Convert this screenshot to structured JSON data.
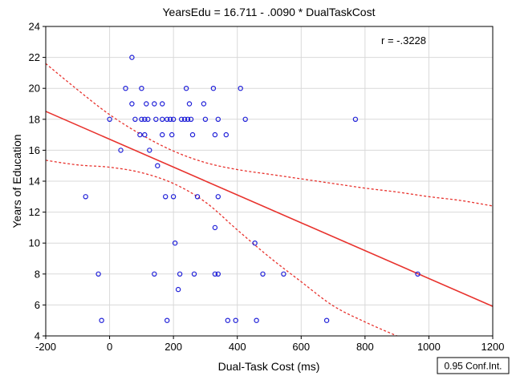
{
  "chart_data": {
    "type": "scatter",
    "title": "YearsEdu = 16.711 - .0090  * DualTaskCost",
    "xlabel": "Dual-Task Cost (ms)",
    "ylabel": "Years of Education",
    "annotation": "r = -.3228",
    "legend": "0.95 Conf.Int.",
    "xlim": [
      -200,
      1200
    ],
    "ylim": [
      4,
      24
    ],
    "xticks": [
      -200,
      0,
      200,
      400,
      600,
      800,
      1000,
      1200
    ],
    "yticks": [
      4,
      6,
      8,
      10,
      12,
      14,
      16,
      18,
      20,
      22,
      24
    ],
    "grid": true,
    "fit": {
      "intercept": 16.711,
      "slope": -0.009
    },
    "colors": {
      "points": "#1f1fd8",
      "fit": "#e8322d"
    },
    "points": [
      {
        "x": 70,
        "y": 22
      },
      {
        "x": 50,
        "y": 20
      },
      {
        "x": 100,
        "y": 20
      },
      {
        "x": 240,
        "y": 20
      },
      {
        "x": 325,
        "y": 20
      },
      {
        "x": 410,
        "y": 20
      },
      {
        "x": 70,
        "y": 19
      },
      {
        "x": 115,
        "y": 19
      },
      {
        "x": 140,
        "y": 19
      },
      {
        "x": 165,
        "y": 19
      },
      {
        "x": 250,
        "y": 19
      },
      {
        "x": 295,
        "y": 19
      },
      {
        "x": 0,
        "y": 18
      },
      {
        "x": 80,
        "y": 18
      },
      {
        "x": 100,
        "y": 18
      },
      {
        "x": 110,
        "y": 18
      },
      {
        "x": 120,
        "y": 18
      },
      {
        "x": 145,
        "y": 18
      },
      {
        "x": 165,
        "y": 18
      },
      {
        "x": 180,
        "y": 18
      },
      {
        "x": 190,
        "y": 18
      },
      {
        "x": 200,
        "y": 18
      },
      {
        "x": 225,
        "y": 18
      },
      {
        "x": 235,
        "y": 18
      },
      {
        "x": 245,
        "y": 18
      },
      {
        "x": 255,
        "y": 18
      },
      {
        "x": 300,
        "y": 18
      },
      {
        "x": 340,
        "y": 18
      },
      {
        "x": 425,
        "y": 18
      },
      {
        "x": 770,
        "y": 18
      },
      {
        "x": 95,
        "y": 17
      },
      {
        "x": 110,
        "y": 17
      },
      {
        "x": 165,
        "y": 17
      },
      {
        "x": 195,
        "y": 17
      },
      {
        "x": 260,
        "y": 17
      },
      {
        "x": 330,
        "y": 17
      },
      {
        "x": 365,
        "y": 17
      },
      {
        "x": 35,
        "y": 16
      },
      {
        "x": 125,
        "y": 16
      },
      {
        "x": 150,
        "y": 15
      },
      {
        "x": -75,
        "y": 13
      },
      {
        "x": 175,
        "y": 13
      },
      {
        "x": 200,
        "y": 13
      },
      {
        "x": 275,
        "y": 13
      },
      {
        "x": 340,
        "y": 13
      },
      {
        "x": 330,
        "y": 11
      },
      {
        "x": 205,
        "y": 10
      },
      {
        "x": 455,
        "y": 10
      },
      {
        "x": -35,
        "y": 8
      },
      {
        "x": 140,
        "y": 8
      },
      {
        "x": 220,
        "y": 8
      },
      {
        "x": 265,
        "y": 8
      },
      {
        "x": 330,
        "y": 8
      },
      {
        "x": 340,
        "y": 8
      },
      {
        "x": 480,
        "y": 8
      },
      {
        "x": 545,
        "y": 8
      },
      {
        "x": 965,
        "y": 8
      },
      {
        "x": 215,
        "y": 7
      },
      {
        "x": -25,
        "y": 5
      },
      {
        "x": 180,
        "y": 5
      },
      {
        "x": 370,
        "y": 5
      },
      {
        "x": 395,
        "y": 5
      },
      {
        "x": 460,
        "y": 5
      },
      {
        "x": 680,
        "y": 5
      }
    ],
    "ci_upper": [
      {
        "x": -200,
        "y": 21.6
      },
      {
        "x": -100,
        "y": 19.9
      },
      {
        "x": 0,
        "y": 18.3
      },
      {
        "x": 100,
        "y": 17.0
      },
      {
        "x": 200,
        "y": 15.95
      },
      {
        "x": 300,
        "y": 15.2
      },
      {
        "x": 400,
        "y": 14.75
      },
      {
        "x": 500,
        "y": 14.45
      },
      {
        "x": 600,
        "y": 14.15
      },
      {
        "x": 700,
        "y": 13.85
      },
      {
        "x": 800,
        "y": 13.55
      },
      {
        "x": 900,
        "y": 13.3
      },
      {
        "x": 1000,
        "y": 13.0
      },
      {
        "x": 1100,
        "y": 12.75
      },
      {
        "x": 1200,
        "y": 12.4
      }
    ],
    "ci_lower": [
      {
        "x": -200,
        "y": 15.35
      },
      {
        "x": -100,
        "y": 15.05
      },
      {
        "x": 0,
        "y": 14.9
      },
      {
        "x": 100,
        "y": 14.55
      },
      {
        "x": 200,
        "y": 13.85
      },
      {
        "x": 300,
        "y": 12.65
      },
      {
        "x": 400,
        "y": 10.85
      },
      {
        "x": 500,
        "y": 9.1
      },
      {
        "x": 600,
        "y": 7.5
      },
      {
        "x": 700,
        "y": 5.95
      },
      {
        "x": 800,
        "y": 4.9
      },
      {
        "x": 900,
        "y": 4.0
      }
    ]
  }
}
